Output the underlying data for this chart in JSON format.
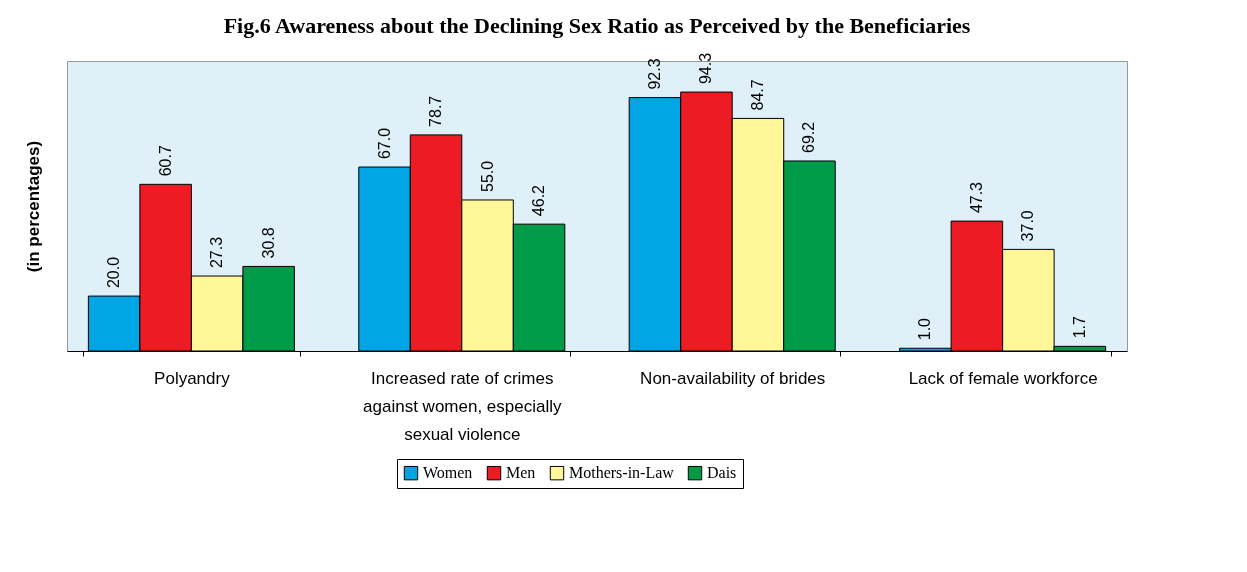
{
  "chart_data": {
    "type": "bar",
    "title": "Fig.6  Awareness  about the Declining Sex Ratio as Perceived by the Beneficiaries",
    "ylabel": "(in percentages)",
    "categories": [
      "Polyandry",
      "Increased rate of crimes against women, especially sexual violence",
      "Non-availability of brides",
      "Lack of female workforce"
    ],
    "series": [
      {
        "name": "Women",
        "color": "#00a6e4",
        "values": [
          20.0,
          67.0,
          92.3,
          1.0
        ],
        "value_labels": [
          "20.0",
          "67.0",
          "92.3",
          "1.0"
        ]
      },
      {
        "name": "Men",
        "color": "#ed1c24",
        "values": [
          60.7,
          78.7,
          94.3,
          47.3
        ],
        "value_labels": [
          "60.7",
          "78.7",
          "94.3",
          "47.3"
        ]
      },
      {
        "name": "Mothers-in-Law",
        "color": "#fff799",
        "values": [
          27.3,
          55.0,
          84.7,
          37.0
        ],
        "value_labels": [
          "27.3",
          "55.0",
          "84.7",
          "37.0"
        ]
      },
      {
        "name": "Dais",
        "color": "#009b48",
        "values": [
          30.8,
          46.2,
          69.2,
          1.7
        ],
        "value_labels": [
          "30.8",
          "46.2",
          "69.2",
          "1.7"
        ]
      }
    ],
    "legend": "bottom"
  }
}
